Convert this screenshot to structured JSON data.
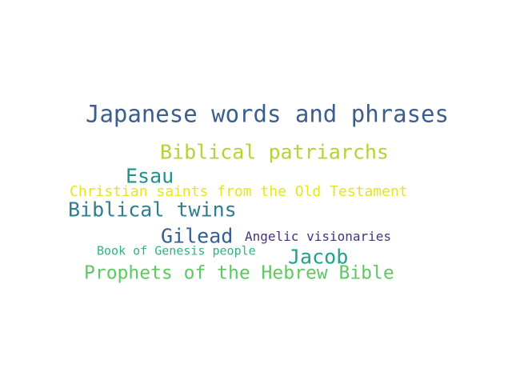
{
  "words": [
    {
      "text": "Japanese words and phrases",
      "color": "#3b5e8c"
    },
    {
      "text": "Biblical patriarchs",
      "color": "#b5d334"
    },
    {
      "text": "Esau",
      "color": "#21918c"
    },
    {
      "text": "Christian saints from the Old Testament",
      "color": "#e8e41e"
    },
    {
      "text": "Biblical twins",
      "color": "#2f7d8e"
    },
    {
      "text": "Gilead",
      "color": "#355f8d"
    },
    {
      "text": "Angelic visionaries",
      "color": "#46327e"
    },
    {
      "text": "Book of Genesis people",
      "color": "#2fb47c"
    },
    {
      "text": "Jacob",
      "color": "#20a386"
    },
    {
      "text": "Prophets of the Hebrew Bible",
      "color": "#5ec962"
    }
  ]
}
